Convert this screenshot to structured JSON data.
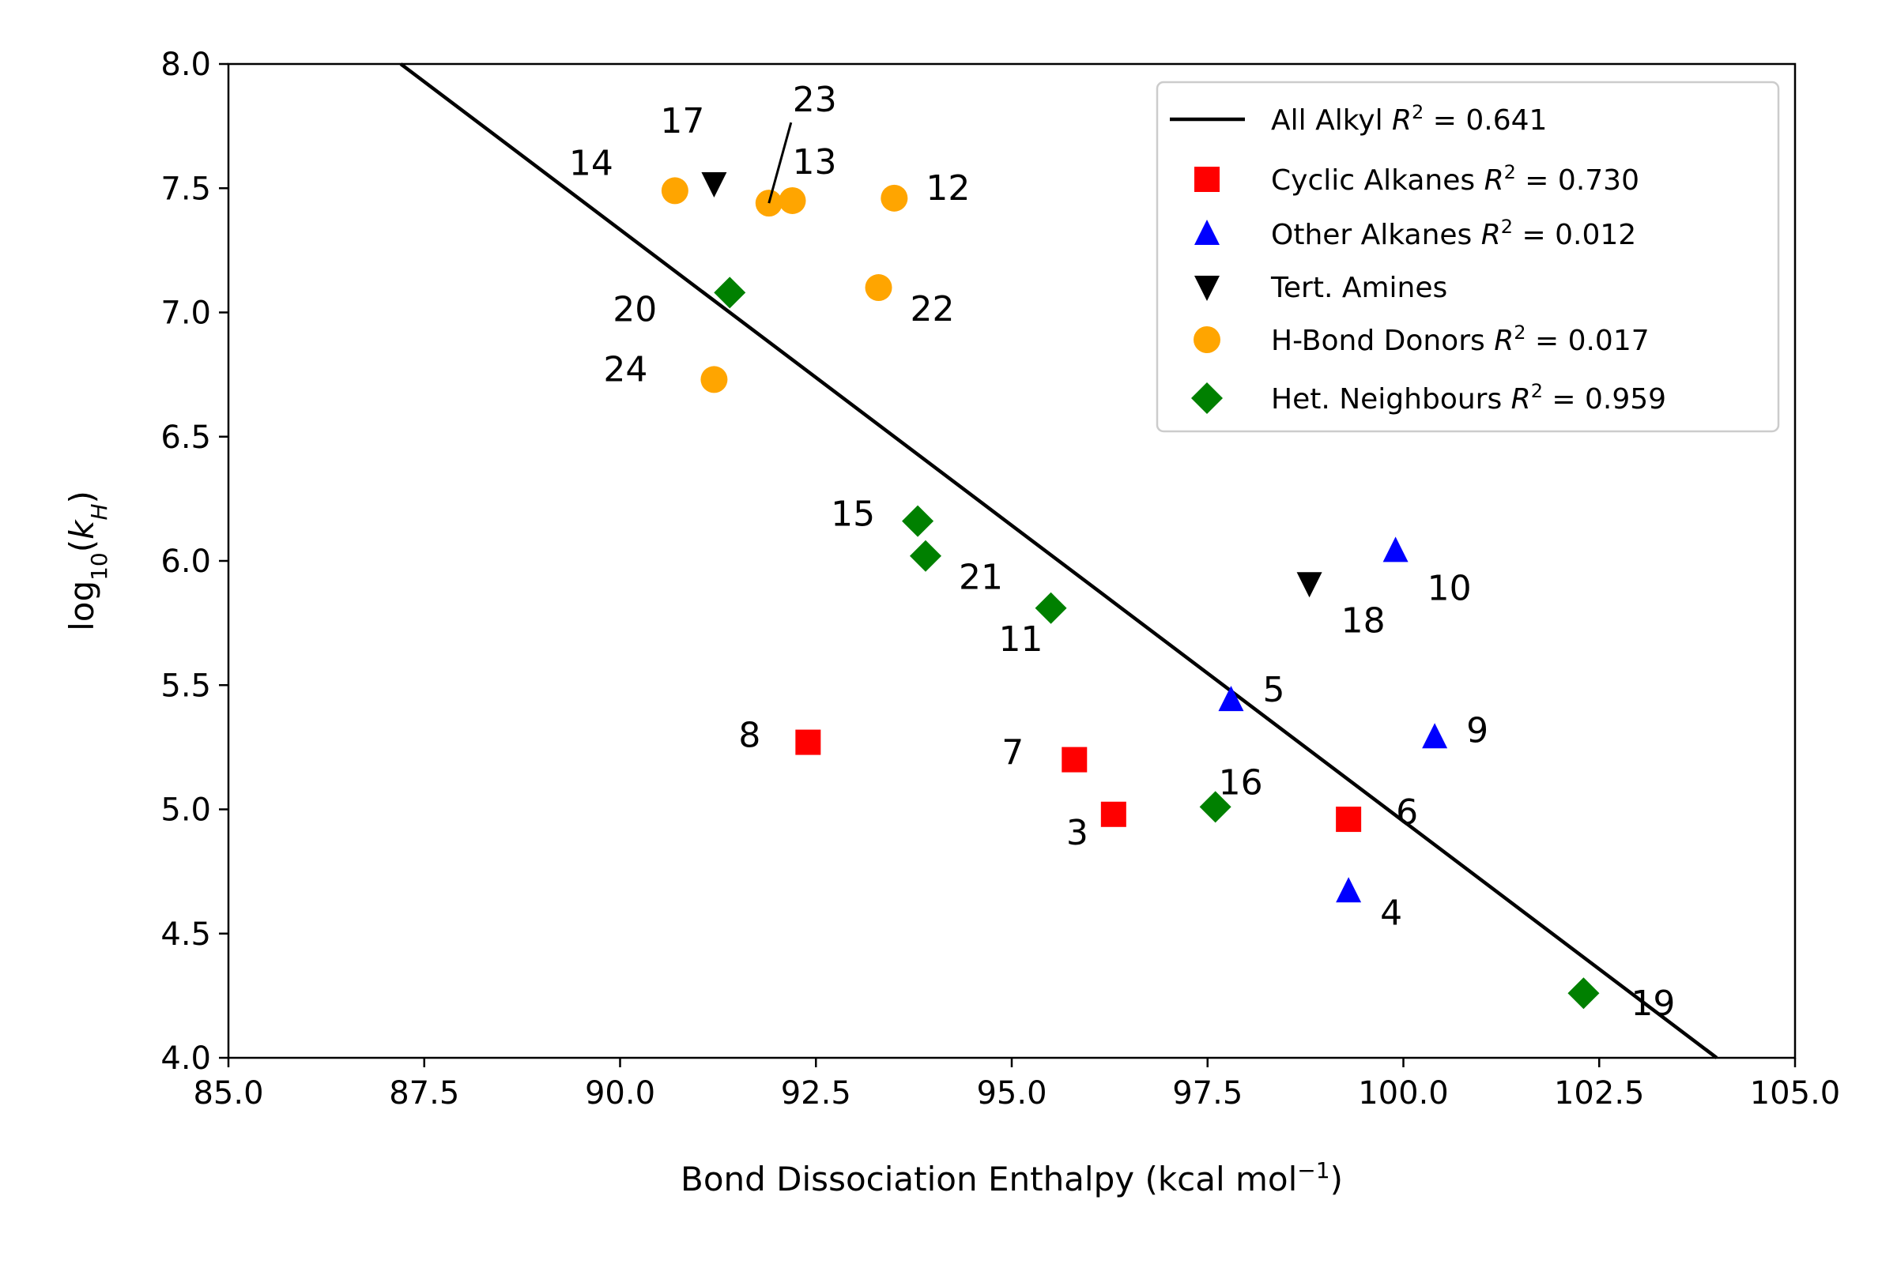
{
  "chart_data": {
    "type": "scatter",
    "xlabel": "Bond Dissociation Enthalpy (kcal mol⁻¹)",
    "ylabel": "log₁₀(k_H)",
    "xlim": [
      85.0,
      105.0
    ],
    "ylim": [
      4.0,
      8.0
    ],
    "xticks": [
      "85.0",
      "87.5",
      "90.0",
      "92.5",
      "95.0",
      "97.5",
      "100.0",
      "102.5",
      "105.0"
    ],
    "yticks": [
      "4.0",
      "4.5",
      "5.0",
      "5.5",
      "6.0",
      "6.5",
      "7.0",
      "7.5",
      "8.0"
    ],
    "grid": false,
    "legend_position": "top-right",
    "fit_line": {
      "name": "All Alkyl",
      "r2": "0.641",
      "x": [
        87.2,
        104.0
      ],
      "y": [
        8.0,
        4.0
      ],
      "color": "#000000"
    },
    "series": [
      {
        "name": "Cyclic Alkanes",
        "r2": "0.730",
        "marker": "square",
        "color": "#ff0000",
        "points": [
          {
            "label": "3",
            "x": 96.3,
            "y": 4.98
          },
          {
            "label": "6",
            "x": 99.3,
            "y": 4.96
          },
          {
            "label": "7",
            "x": 95.8,
            "y": 5.2
          },
          {
            "label": "8",
            "x": 92.4,
            "y": 5.27
          }
        ]
      },
      {
        "name": "Other Alkanes",
        "r2": "0.012",
        "marker": "triangle-up",
        "color": "#0000ff",
        "points": [
          {
            "label": "4",
            "x": 99.3,
            "y": 4.67
          },
          {
            "label": "5",
            "x": 97.8,
            "y": 5.44
          },
          {
            "label": "9",
            "x": 100.4,
            "y": 5.29
          },
          {
            "label": "10",
            "x": 99.9,
            "y": 6.04
          }
        ]
      },
      {
        "name": "Tert. Amines",
        "r2": "",
        "marker": "triangle-down",
        "color": "#000000",
        "points": [
          {
            "label": "17",
            "x": 91.2,
            "y": 7.52
          },
          {
            "label": "18",
            "x": 98.8,
            "y": 5.91
          }
        ]
      },
      {
        "name": "H-Bond Donors",
        "r2": "0.017",
        "marker": "circle",
        "color": "#ffa500",
        "points": [
          {
            "label": "12",
            "x": 93.5,
            "y": 7.46
          },
          {
            "label": "13",
            "x": 92.2,
            "y": 7.45
          },
          {
            "label": "14",
            "x": 90.7,
            "y": 7.49
          },
          {
            "label": "22",
            "x": 93.3,
            "y": 7.1
          },
          {
            "label": "23",
            "x": 91.9,
            "y": 7.44
          },
          {
            "label": "24",
            "x": 91.2,
            "y": 6.73
          }
        ]
      },
      {
        "name": "Het. Neighbours",
        "r2": "0.959",
        "marker": "diamond",
        "color": "#008000",
        "points": [
          {
            "label": "11",
            "x": 95.5,
            "y": 5.81
          },
          {
            "label": "15",
            "x": 93.8,
            "y": 6.16
          },
          {
            "label": "16",
            "x": 97.6,
            "y": 5.01
          },
          {
            "label": "19",
            "x": 102.3,
            "y": 4.26
          },
          {
            "label": "20",
            "x": 91.4,
            "y": 7.08
          },
          {
            "label": "21",
            "x": 93.9,
            "y": 6.02
          }
        ]
      }
    ]
  }
}
